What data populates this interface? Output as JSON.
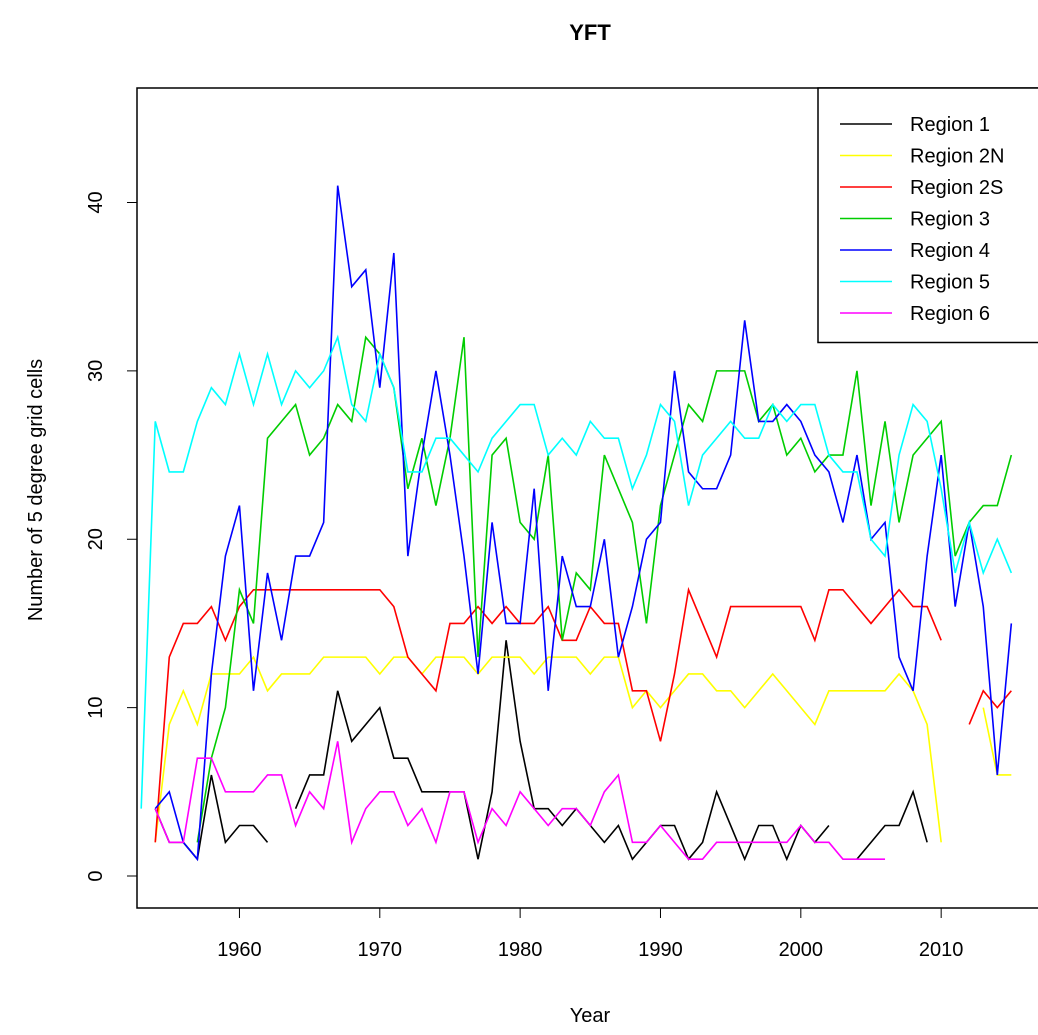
{
  "chart_data": {
    "type": "line",
    "title": "YFT",
    "x_label": "Year",
    "y_label": "Number of 5 degree grid cells",
    "x": [
      1953,
      1954,
      1955,
      1956,
      1957,
      1958,
      1959,
      1960,
      1961,
      1962,
      1963,
      1964,
      1965,
      1966,
      1967,
      1968,
      1969,
      1970,
      1971,
      1972,
      1973,
      1974,
      1975,
      1976,
      1977,
      1978,
      1979,
      1980,
      1981,
      1982,
      1983,
      1984,
      1985,
      1986,
      1987,
      1988,
      1989,
      1990,
      1991,
      1992,
      1993,
      1994,
      1995,
      1996,
      1997,
      1998,
      1999,
      2000,
      2001,
      2002,
      2003,
      2004,
      2005,
      2006,
      2007,
      2008,
      2009,
      2010,
      2011,
      2012,
      2013,
      2014,
      2015
    ],
    "series": [
      {
        "name": "Region 1",
        "color": "#000000",
        "values": [
          null,
          4,
          2,
          2,
          1,
          6,
          2,
          3,
          3,
          2,
          null,
          4,
          6,
          6,
          11,
          8,
          9,
          10,
          7,
          7,
          5,
          5,
          5,
          5,
          1,
          5,
          14,
          8,
          4,
          4,
          3,
          4,
          3,
          2,
          3,
          1,
          2,
          3,
          3,
          1,
          2,
          5,
          3,
          1,
          3,
          3,
          1,
          3,
          2,
          3,
          null,
          1,
          2,
          3,
          3,
          5,
          2,
          null,
          null,
          null,
          null,
          null,
          null
        ]
      },
      {
        "name": "Region 2N",
        "color": "#ffff00",
        "values": [
          null,
          2,
          9,
          11,
          9,
          12,
          12,
          12,
          13,
          11,
          12,
          12,
          12,
          13,
          13,
          13,
          13,
          12,
          13,
          13,
          12,
          13,
          13,
          13,
          12,
          13,
          13,
          13,
          12,
          13,
          13,
          13,
          12,
          13,
          13,
          10,
          11,
          10,
          11,
          12,
          12,
          11,
          11,
          10,
          11,
          12,
          11,
          10,
          9,
          11,
          11,
          11,
          11,
          11,
          12,
          11,
          9,
          2,
          null,
          null,
          10,
          6,
          6
        ]
      },
      {
        "name": "Region 2S",
        "color": "#ff0000",
        "values": [
          null,
          2,
          13,
          15,
          15,
          16,
          14,
          16,
          17,
          17,
          17,
          17,
          17,
          17,
          17,
          17,
          17,
          17,
          16,
          13,
          12,
          11,
          15,
          15,
          16,
          15,
          16,
          15,
          15,
          16,
          14,
          14,
          16,
          15,
          15,
          11,
          11,
          8,
          12,
          17,
          15,
          13,
          16,
          16,
          16,
          16,
          16,
          16,
          14,
          17,
          17,
          16,
          15,
          16,
          17,
          16,
          16,
          14,
          null,
          9,
          11,
          10,
          11
        ]
      },
      {
        "name": "Region 3",
        "color": "#00cd00",
        "values": [
          null,
          null,
          null,
          null,
          2,
          7,
          10,
          17,
          15,
          26,
          27,
          28,
          25,
          26,
          28,
          27,
          32,
          31,
          29,
          23,
          26,
          22,
          26,
          32,
          13,
          25,
          26,
          21,
          20,
          25,
          14,
          18,
          17,
          25,
          23,
          21,
          15,
          22,
          25,
          28,
          27,
          30,
          30,
          30,
          27,
          28,
          25,
          26,
          24,
          25,
          25,
          30,
          22,
          27,
          21,
          25,
          26,
          27,
          19,
          21,
          22,
          22,
          25
        ]
      },
      {
        "name": "Region 4",
        "color": "#0000ff",
        "values": [
          null,
          4,
          5,
          2,
          1,
          12,
          19,
          22,
          11,
          18,
          14,
          19,
          19,
          21,
          41,
          35,
          36,
          29,
          37,
          19,
          25,
          30,
          25,
          19,
          12,
          21,
          15,
          15,
          23,
          11,
          19,
          16,
          16,
          20,
          13,
          16,
          20,
          21,
          30,
          24,
          23,
          23,
          25,
          33,
          27,
          27,
          28,
          27,
          25,
          24,
          21,
          25,
          20,
          21,
          13,
          11,
          19,
          25,
          16,
          21,
          16,
          6,
          15
        ]
      },
      {
        "name": "Region 5",
        "color": "#00ffff",
        "values": [
          4,
          27,
          24,
          24,
          27,
          29,
          28,
          31,
          28,
          31,
          28,
          30,
          29,
          30,
          32,
          28,
          27,
          31,
          29,
          24,
          24,
          26,
          26,
          25,
          24,
          26,
          27,
          28,
          28,
          25,
          26,
          25,
          27,
          26,
          26,
          23,
          25,
          28,
          27,
          22,
          25,
          26,
          27,
          26,
          26,
          28,
          27,
          28,
          28,
          25,
          24,
          24,
          20,
          19,
          25,
          28,
          27,
          23,
          18,
          21,
          18,
          20,
          18
        ]
      },
      {
        "name": "Region 6",
        "color": "#ff00ff",
        "values": [
          null,
          4,
          2,
          2,
          7,
          7,
          5,
          5,
          5,
          6,
          6,
          3,
          5,
          4,
          8,
          2,
          4,
          5,
          5,
          3,
          4,
          2,
          5,
          5,
          2,
          4,
          3,
          5,
          4,
          3,
          4,
          4,
          3,
          5,
          6,
          2,
          2,
          3,
          2,
          1,
          1,
          2,
          2,
          2,
          2,
          2,
          2,
          3,
          2,
          2,
          1,
          1,
          1,
          1,
          null,
          null,
          null,
          null,
          null,
          null,
          null,
          null,
          null
        ]
      }
    ],
    "xlim": [
      1952.7,
      2016.9
    ],
    "ylim": [
      -1.9,
      46.8
    ],
    "xticks": [
      1960,
      1970,
      1980,
      1990,
      2000,
      2010
    ],
    "yticks": [
      0,
      10,
      20,
      30,
      40
    ],
    "legend": "topright"
  }
}
